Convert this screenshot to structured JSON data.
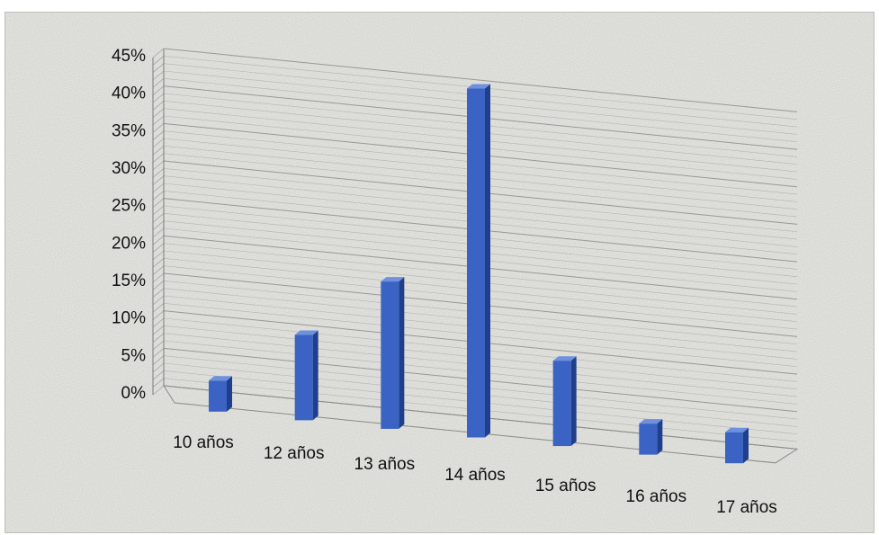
{
  "chart_data": {
    "type": "bar",
    "title": "",
    "xlabel": "",
    "ylabel": "",
    "categories": [
      "10 años",
      "12 años",
      "13 años",
      "14 años",
      "15 años",
      "16 años",
      "17 años"
    ],
    "values": [
      4,
      11,
      19,
      45,
      11,
      4,
      4
    ],
    "ylim": [
      0,
      45
    ],
    "y_ticks": [
      "0%",
      "5%",
      "10%",
      "15%",
      "20%",
      "25%",
      "30%",
      "35%",
      "40%",
      "45%"
    ],
    "grid": true,
    "legend": "none",
    "colors": {
      "bar_front": "#3b63c4",
      "bar_side": "#1f3f8c",
      "bar_top": "#6f90dd",
      "grid": "#8c8c8c"
    }
  }
}
